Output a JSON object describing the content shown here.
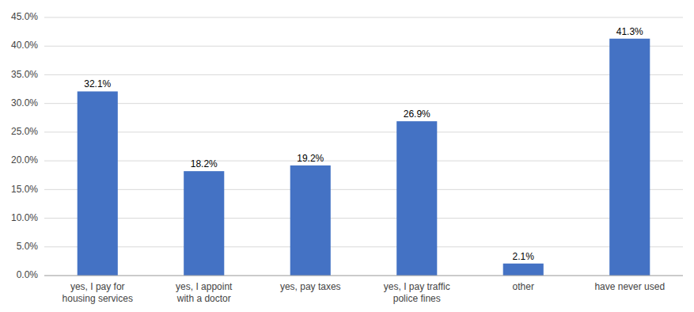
{
  "chart_data": {
    "type": "bar",
    "categories": [
      "yes, I pay for\nhousing services",
      "yes, I appoint\nwith a doctor",
      "yes, pay taxes",
      "yes, I pay traffic\npolice fines",
      "other",
      "have never used"
    ],
    "values": [
      32.1,
      18.2,
      19.2,
      26.9,
      2.1,
      41.3
    ],
    "value_labels": [
      "32.1%",
      "18.2%",
      "19.2%",
      "26.9%",
      "2.1%",
      "41.3%"
    ],
    "data_labels": true,
    "color": "#4472C4",
    "ylim": [
      0,
      45
    ],
    "yticks": [
      {
        "value": 0,
        "label": "0.0%"
      },
      {
        "value": 5,
        "label": "5.0%"
      },
      {
        "value": 10,
        "label": "10.0%"
      },
      {
        "value": 15,
        "label": "15.0%"
      },
      {
        "value": 20,
        "label": "20.0%"
      },
      {
        "value": 25,
        "label": "25.0%"
      },
      {
        "value": 30,
        "label": "30.0%"
      },
      {
        "value": 35,
        "label": "35.0%"
      },
      {
        "value": 40,
        "label": "40.0%"
      },
      {
        "value": 45,
        "label": "45.0%"
      }
    ],
    "grid": true
  }
}
